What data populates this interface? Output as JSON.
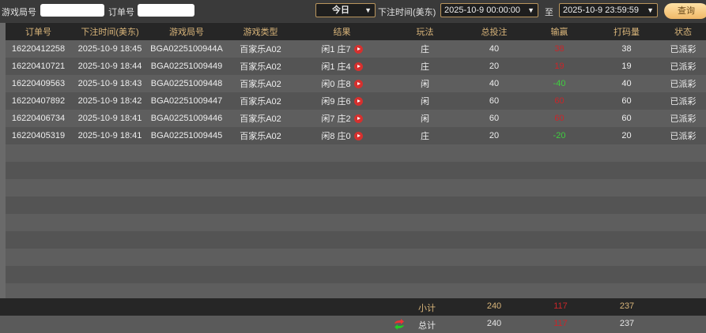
{
  "filters": {
    "game_no_label": "游戏局号",
    "game_no_value": "",
    "order_no_label": "订单号",
    "order_no_value": "",
    "period": "今日",
    "time_label": "下注时间(美东)",
    "start": "2025-10-9 00:00:00",
    "to_label": "至",
    "end": "2025-10-9 23:59:59",
    "query": "查询"
  },
  "columns": [
    "订单号",
    "下注时间(美东)",
    "游戏局号",
    "游戏类型",
    "结果",
    "玩法",
    "总投注",
    "输赢",
    "打码量",
    "状态"
  ],
  "rows": [
    [
      "16220412258",
      "2025-10-9 18:45",
      "BGA0225100944A",
      "百家乐A02",
      "闲1 庄7",
      "庄",
      "40",
      "38",
      "38",
      "已派彩"
    ],
    [
      "16220410721",
      "2025-10-9 18:44",
      "BGA02251009449",
      "百家乐A02",
      "闲1 庄4",
      "庄",
      "20",
      "19",
      "19",
      "已派彩"
    ],
    [
      "16220409563",
      "2025-10-9 18:43",
      "BGA02251009448",
      "百家乐A02",
      "闲0 庄8",
      "闲",
      "40",
      "-40",
      "40",
      "已派彩"
    ],
    [
      "16220407892",
      "2025-10-9 18:42",
      "BGA02251009447",
      "百家乐A02",
      "闲9 庄6",
      "闲",
      "60",
      "60",
      "60",
      "已派彩"
    ],
    [
      "16220406734",
      "2025-10-9 18:41",
      "BGA02251009446",
      "百家乐A02",
      "闲7 庄2",
      "闲",
      "60",
      "60",
      "60",
      "已派彩"
    ],
    [
      "16220405319",
      "2025-10-9 18:41",
      "BGA02251009445",
      "百家乐A02",
      "闲8 庄0",
      "庄",
      "20",
      "-20",
      "20",
      "已派彩"
    ]
  ],
  "subtotal": {
    "label": "小计",
    "bet": "240",
    "win": "117",
    "turnover": "237"
  },
  "total": {
    "label": "总计",
    "bet": "240",
    "win": "117",
    "turnover": "237"
  },
  "colors": {
    "win": "#c8262a",
    "loss": "#3fcf3f",
    "header_text": "#d9b57a"
  }
}
